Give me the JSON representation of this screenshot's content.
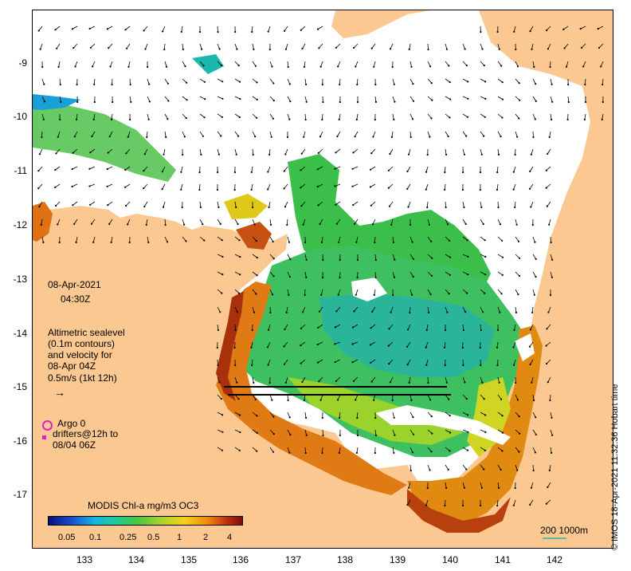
{
  "map": {
    "y_ticks": [
      {
        "label": "-9",
        "top": 72
      },
      {
        "label": "-10",
        "top": 139
      },
      {
        "label": "-11",
        "top": 207
      },
      {
        "label": "-12",
        "top": 275
      },
      {
        "label": "-13",
        "top": 343
      },
      {
        "label": "-14",
        "top": 411
      },
      {
        "label": "-15",
        "top": 478
      },
      {
        "label": "-16",
        "top": 546
      },
      {
        "label": "-17",
        "top": 613
      }
    ],
    "x_ticks": [
      "133",
      "134",
      "135",
      "136",
      "137",
      "138",
      "139",
      "140",
      "141",
      "142"
    ]
  },
  "labels": {
    "date": "08-Apr-2021",
    "time": "04:30Z",
    "sealevel_1": "Altimetric sealevel",
    "sealevel_2": "(0.1m contours)",
    "sealevel_3": "and velocity for",
    "sealevel_4": "08-Apr 04Z",
    "sealevel_5": "0.5m/s (1kt 12h)",
    "argo": "Argo 0",
    "drifters_1": "drifters@12h to",
    "drifters_2": "08/04 06Z",
    "colorbar_title": "MODIS Chl-a mg/m3 OC3",
    "colorbar_ticks": [
      "0.05",
      "0.1",
      "0.25",
      "0.5",
      "1",
      "2",
      "4"
    ],
    "scale": "200  1000m",
    "credit": "© IMOS 18-Apr-2021 11:32:36 Hobart time"
  },
  "colors": {
    "land": "#fbc892",
    "ocean": "#ffffff",
    "argo_marker": "#e020c0"
  }
}
